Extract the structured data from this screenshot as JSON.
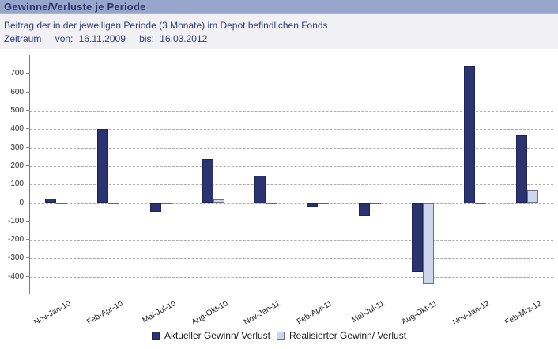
{
  "header": {
    "title": "Gewinne/Verluste je Periode"
  },
  "subtitle": "Beitrag der in der jeweiligen Periode (3 Monate) im Depot befindlichen Fonds",
  "zeitraum": {
    "label": "Zeitraum",
    "von_label": "von:",
    "von_value": "16.11.2009",
    "bis_label": "bis:",
    "bis_value": "16.03.2012"
  },
  "colors": {
    "titlebar_bg": "#98a6cb",
    "title_text": "#2e3470",
    "subtitle_text": "#333a78",
    "bar_aktuell": "#2b3470",
    "bar_aktuell_border": "#1d2452",
    "bar_realisiert": "#cdd6ec",
    "bar_realisiert_border": "#70707c",
    "gridline": "#ababab",
    "axis_line": "#7a7a7a",
    "plot_background": "#ffffff"
  },
  "chart_data": {
    "type": "bar",
    "title": "Gewinne/Verluste je Periode",
    "categories": [
      "Nov-Jan-10",
      "Feb-Apr-10",
      "Mai-Jul-10",
      "Aug-Okt-10",
      "Nov-Jan-11",
      "Feb-Apr-11",
      "Mai-Jul-11",
      "Aug-Okt-11",
      "Nov-Jan-12",
      "Feb-Mrz-12"
    ],
    "series": [
      {
        "name": "Aktueller Gewinn/ Verlust",
        "values": [
          25,
          400,
          -50,
          240,
          150,
          -20,
          -70,
          -375,
          740,
          365
        ]
      },
      {
        "name": "Realisierter Gewinn/ Verlust",
        "values": [
          0,
          0,
          0,
          20,
          0,
          0,
          0,
          -440,
          0,
          70
        ]
      }
    ],
    "xlabel": "",
    "ylabel": "",
    "ylim": [
      -500,
      800
    ],
    "yticks": [
      700,
      600,
      500,
      400,
      300,
      200,
      100,
      0,
      -100,
      -200,
      -300,
      -400
    ],
    "grid": true,
    "legend_position": "bottom"
  }
}
